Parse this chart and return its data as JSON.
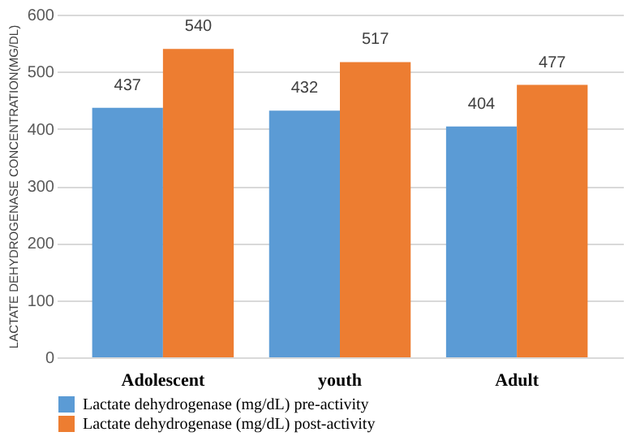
{
  "chart_data": {
    "type": "bar",
    "ylabel": "LACTATE DEHYDROGENASE CONCENTRATION(MG/DL)",
    "categories": [
      "Adolescent",
      "youth",
      "Adult"
    ],
    "series": [
      {
        "name": "Lactate dehydrogenase (mg/dL) pre-activity",
        "color": "#5b9bd5",
        "values": [
          437,
          432,
          404
        ]
      },
      {
        "name": "Lactate dehydrogenase (mg/dL) post-activity",
        "color": "#ed7d31",
        "values": [
          540,
          517,
          477
        ]
      }
    ],
    "ylim": [
      0,
      600
    ],
    "yticks": [
      0,
      100,
      200,
      300,
      400,
      500,
      600
    ],
    "grid": "y",
    "legend": "bottom",
    "data_labels": true
  }
}
